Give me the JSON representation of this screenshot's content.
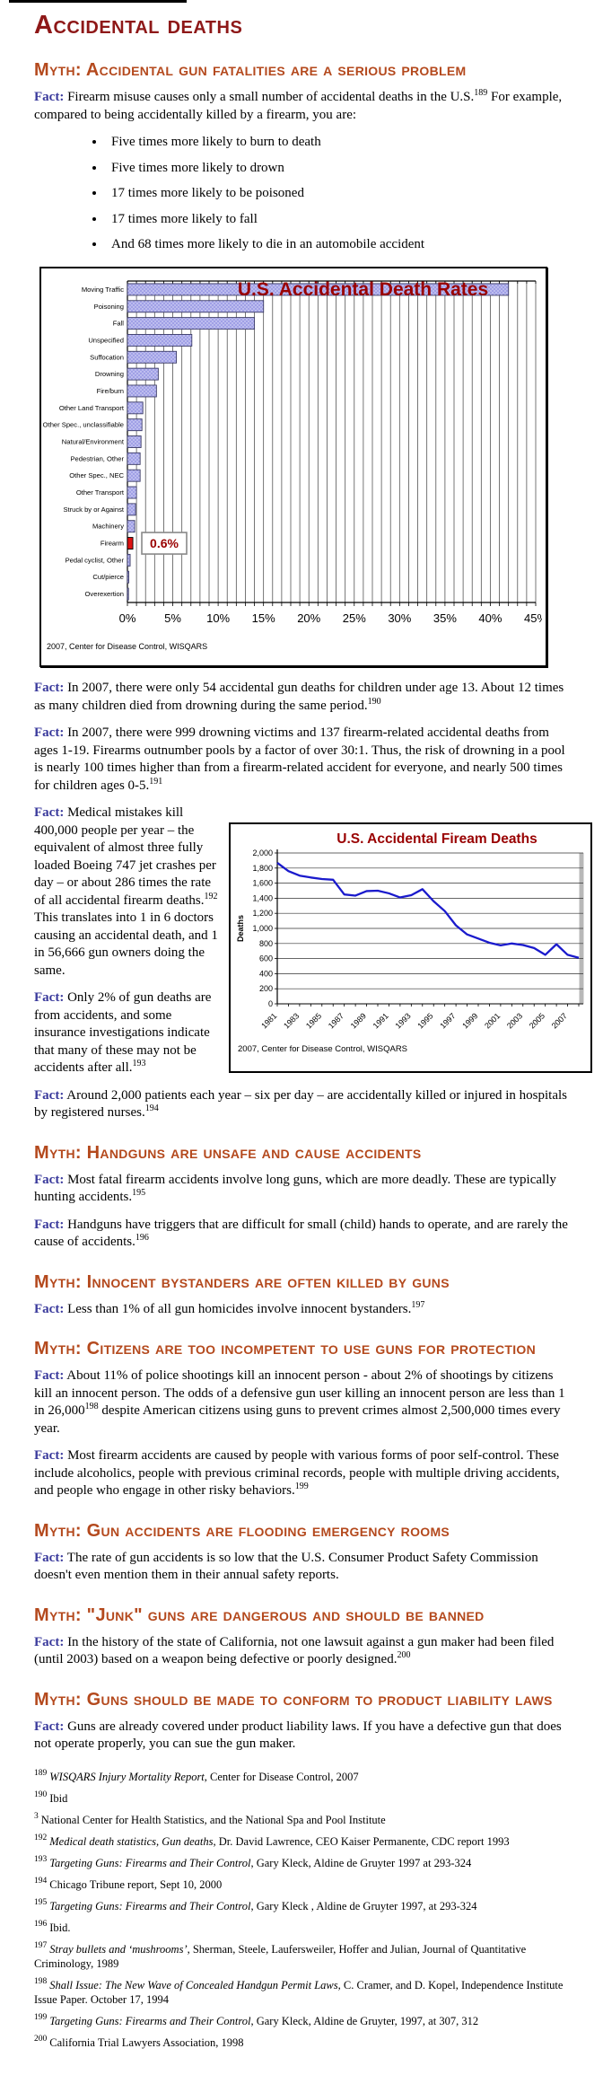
{
  "page": {
    "title": "Accidental deaths",
    "colors": {
      "title_maroon": "#8e1818",
      "myth_rust": "#b4491d",
      "fact_blue": "#3a3a9c",
      "chart_title_red": "#990000",
      "bar_fill": "#a0a0e6",
      "bar_highlight": "#dd1111",
      "line_blue": "#1a1acc"
    }
  },
  "intro": {
    "heading": "Myth: Accidental gun fatalities are a serious problem",
    "fact_label": "Fact:",
    "lead": "Firearm misuse causes only a small number of accidental deaths in the U.S.{sup:189} For example, compared to being accidentally killed by a firearm, you are:",
    "bullets": [
      "Five times more likely to burn to death",
      "Five times more likely to drown",
      "17 times more likely to be poisoned",
      "17 times more likely to fall",
      "And 68 times more likely to die in an automobile accident"
    ],
    "facts_after_chart": [
      "In 2007, there were only 54 accidental gun deaths for children under age 13. About 12 times as many children died from drowning during the same period.{sup:190}",
      "In 2007, there were 999 drowning victims and 137 firearm-related accidental deaths from ages 1-19. Firearms outnumber pools by a factor of over 30:1.  Thus, the risk of drowning in a pool is nearly 100 times higher than from a firearm-related accident for everyone, and nearly 500 times for children ages 0-5.{sup:191}"
    ],
    "wrap_facts": [
      "Medical mistakes kill 400,000 people per year – the equivalent of almost three fully loaded Boeing 747 jet crashes per day – or about 286 times the rate of all accidental firearm deaths.{sup:192} This translates into 1 in 6 doctors causing an accidental death, and 1 in 56,666 gun owners doing the same.",
      "Only 2% of gun deaths are from accidents, and some insurance investigations indicate that many of these may not be accidents after all.{sup:193}",
      "Around 2,000 patients each year – six per day – are accidentally killed or injured in hospitals by registered nurses.{sup:194}"
    ]
  },
  "sections": [
    {
      "heading": "Myth: Handguns are unsafe and cause accidents",
      "facts": [
        "Most fatal firearm accidents involve long guns, which are more deadly.  These are typically hunting accidents.{sup:195}",
        "Handguns have triggers that are difficult for small (child) hands to operate, and are rarely the cause of accidents.{sup:196}"
      ]
    },
    {
      "heading": "Myth: Innocent bystanders are often killed by guns",
      "facts": [
        "Less than 1% of all gun homicides involve innocent bystanders.{sup:197}"
      ]
    },
    {
      "heading": "Myth: Citizens are too incompetent to use guns for protection",
      "facts": [
        "About 11% of police shootings kill an innocent person - about 2% of shootings by citizens kill an innocent person. The odds of a defensive gun user killing an innocent person are less than 1 in 26,000{sup:198} despite American citizens using guns to prevent crimes almost 2,500,000 times every year.",
        "Most firearm accidents are caused by people with various forms of poor self-control. These include alcoholics, people with previous criminal records, people with multiple driving accidents, and people who engage in other risky behaviors.{sup:199}"
      ]
    },
    {
      "heading": "Myth: Gun accidents are flooding emergency rooms",
      "facts": [
        "The rate of gun accidents is so low that the U.S. Consumer Product Safety Commission doesn't even mention them in their annual safety reports."
      ]
    },
    {
      "heading": "Myth: \"Junk\" guns are dangerous and should be banned",
      "facts": [
        "In the history of the state of California, not one lawsuit against a gun maker had been filed (until 2003) based on a weapon being defective or poorly designed.{sup:200}"
      ]
    },
    {
      "heading": "Myth: Guns should be made to conform to product liability laws",
      "facts": [
        "Guns are already covered under product liability laws. If you have a defective gun that does not operate properly, you can sue the gun maker."
      ]
    }
  ],
  "footnotes": [
    {
      "num": "189",
      "italic": "WISQARS Injury Mortality Report",
      "rest": ", Center for Disease Control, 2007"
    },
    {
      "num": "190",
      "italic": "",
      "rest": "Ibid"
    },
    {
      "num": "3",
      "italic": "",
      "rest": "National Center for Health Statistics, and the National Spa and Pool Institute"
    },
    {
      "num": "192",
      "italic": "Medical death statistics, Gun deaths",
      "rest": ", Dr. David Lawrence, CEO Kaiser Permanente, CDC report 1993"
    },
    {
      "num": "193",
      "italic": "Targeting Guns: Firearms and Their Control",
      "rest": ", Gary Kleck, Aldine de Gruyter 1997 at 293-324"
    },
    {
      "num": "194",
      "italic": "",
      "rest": "Chicago Tribune report, Sept 10, 2000"
    },
    {
      "num": "195",
      "italic": "Targeting Guns: Firearms and Their Control",
      "rest": ", Gary Kleck , Aldine de Gruyter 1997, at 293-324"
    },
    {
      "num": "196",
      "italic": "",
      "rest": "Ibid."
    },
    {
      "num": "197",
      "italic": "Stray bullets and ‘mushrooms’",
      "rest": ", Sherman, Steele, Laufersweiler, Hoffer and Julian, Journal of Quantitative Criminology, 1989"
    },
    {
      "num": "198",
      "italic": "Shall Issue: The New Wave of Concealed Handgun Permit Laws,",
      "rest": " C. Cramer, and D. Kopel, Independence Institute Issue Paper. October 17, 1994"
    },
    {
      "num": "199",
      "italic": "Targeting Guns: Firearms and Their Control",
      "rest": ", Gary Kleck, Aldine de Gruyter, 1997, at 307, 312"
    },
    {
      "num": "200",
      "italic": "",
      "rest": "California Trial Lawyers Association, 1998"
    }
  ],
  "chart_data": [
    {
      "type": "bar",
      "orientation": "horizontal",
      "title": "U.S. Accidental Death Rates",
      "source": "2007, Center for Disease Control, WISQARS",
      "categories": [
        "Moving Traffic",
        "Poisoning",
        "Fall",
        "Unspecified",
        "Suffocation",
        "Drowning",
        "Fire/burn",
        "Other Land Transport",
        "Other Spec., unclassifiable",
        "Natural/Environment",
        "Pedestrian, Other",
        "Other Spec., NEC",
        "Other Transport",
        "Struck by or Against",
        "Machinery",
        "Firearm",
        "Pedal cyclist, Other",
        "Cut/pierce",
        "Overexertion"
      ],
      "values": [
        42,
        15,
        14,
        7.1,
        5.4,
        3.4,
        3.2,
        1.7,
        1.6,
        1.5,
        1.4,
        1.4,
        1.0,
        0.9,
        0.8,
        0.6,
        0.3,
        0.15,
        0.05
      ],
      "xlim": [
        0,
        45
      ],
      "x_tick_step": 5,
      "x_tick_labels": [
        "0%",
        "5%",
        "10%",
        "15%",
        "20%",
        "25%",
        "30%",
        "35%",
        "40%",
        "45%"
      ],
      "gridline_step": 1,
      "highlight_index": 15,
      "annotation": {
        "text": "0.6%",
        "at_index": 15
      },
      "legend": "none"
    },
    {
      "type": "line",
      "title": "U.S. Accidental Fiream Deaths",
      "ylabel": "Deaths",
      "source": "2007, Center for Disease Control, WISQARS",
      "x": [
        1981,
        1982,
        1983,
        1984,
        1985,
        1986,
        1987,
        1988,
        1989,
        1990,
        1991,
        1992,
        1993,
        1994,
        1995,
        1996,
        1997,
        1998,
        1999,
        2000,
        2001,
        2002,
        2003,
        2004,
        2005,
        2006,
        2007,
        2008
      ],
      "values": [
        1870,
        1760,
        1700,
        1675,
        1655,
        1645,
        1450,
        1435,
        1495,
        1500,
        1465,
        1410,
        1440,
        1520,
        1360,
        1230,
        1040,
        920,
        865,
        810,
        775,
        800,
        780,
        740,
        650,
        790,
        650,
        610
      ],
      "ylim": [
        0,
        2000
      ],
      "y_tick_step": 200,
      "x_tick_labels": [
        "1981",
        "1983",
        "1985",
        "1987",
        "1989",
        "1991",
        "1993",
        "1995",
        "1997",
        "1999",
        "2001",
        "2003",
        "2005",
        "2007"
      ],
      "grid": "horizontal",
      "legend": "none"
    }
  ]
}
